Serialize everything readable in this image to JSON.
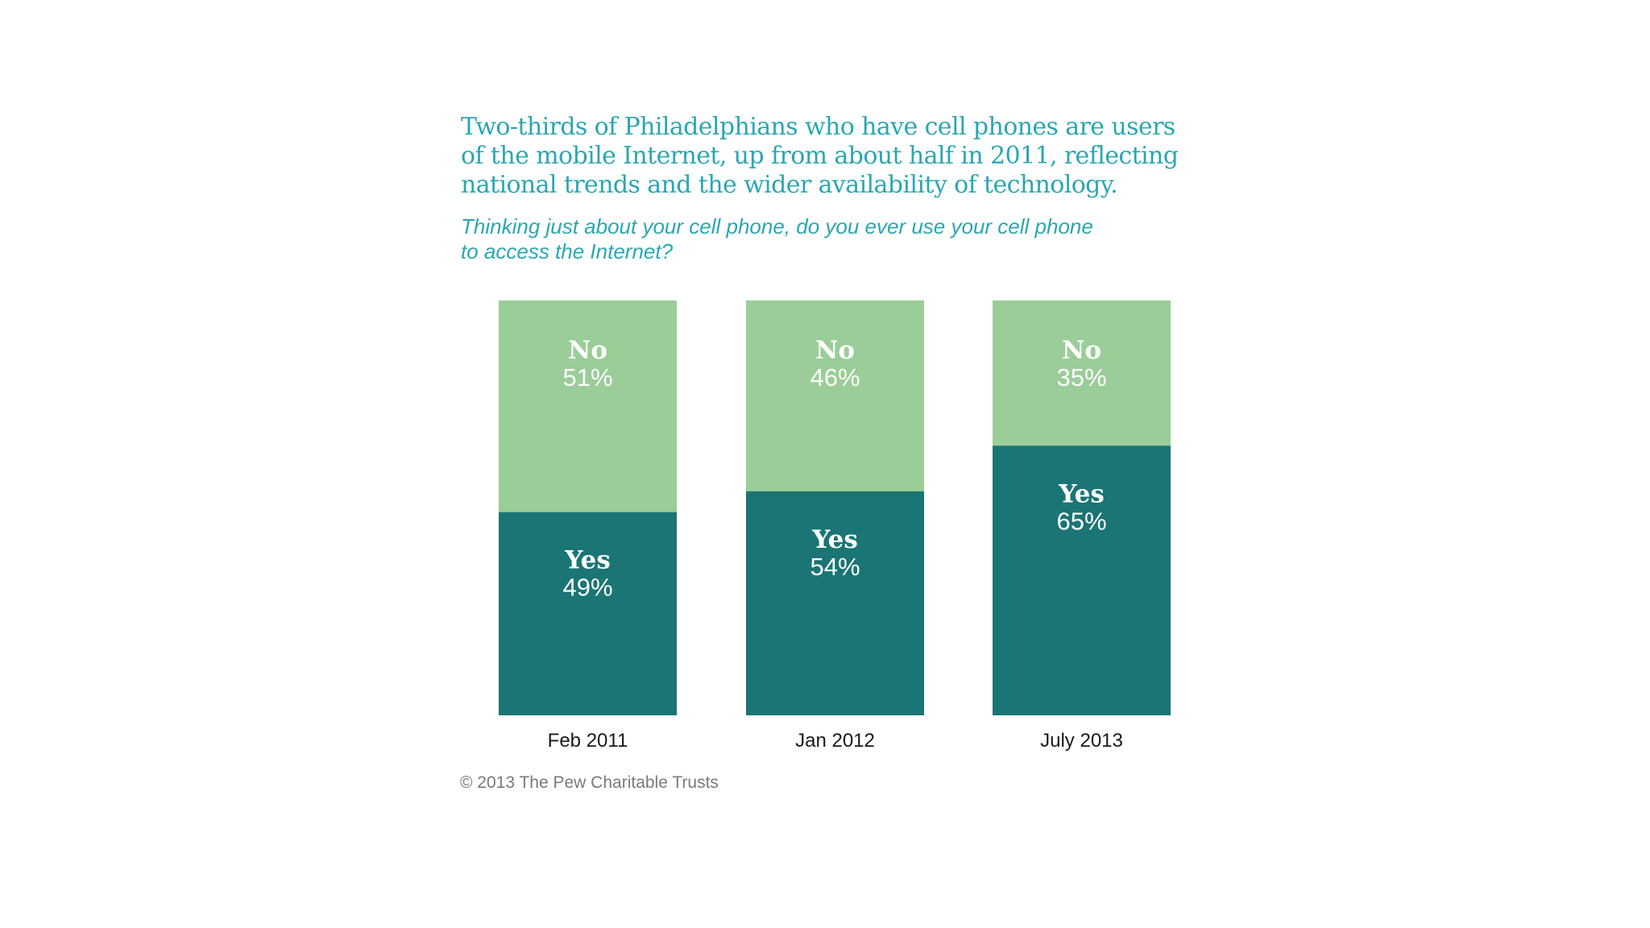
{
  "title": "Two-thirds of Philadelphians who have cell phones are users\nof the mobile Internet, up from about half in 2011, reflecting\nnational trends and the wider availability of technology.",
  "subtitle": "Thinking just about your cell phone, do you ever use your cell phone\nto access the Internet?",
  "source": "© 2013 The Pew Charitable Trusts",
  "colors": {
    "yes": "#1a7574",
    "no": "#9acd98",
    "title": "#2aa7b2"
  },
  "chart_data": {
    "type": "bar",
    "stacked": true,
    "orientation": "vertical",
    "categories": [
      "Feb 2011",
      "Jan 2012",
      "July 2013"
    ],
    "series": [
      {
        "name": "Yes",
        "values": [
          49,
          54,
          65
        ],
        "labels": [
          "49%",
          "54%",
          "65%"
        ]
      },
      {
        "name": "No",
        "values": [
          51,
          46,
          35
        ],
        "labels": [
          "51%",
          "46%",
          "35%"
        ]
      }
    ],
    "ylim": [
      0,
      100
    ],
    "grid": false,
    "legend": "none"
  }
}
